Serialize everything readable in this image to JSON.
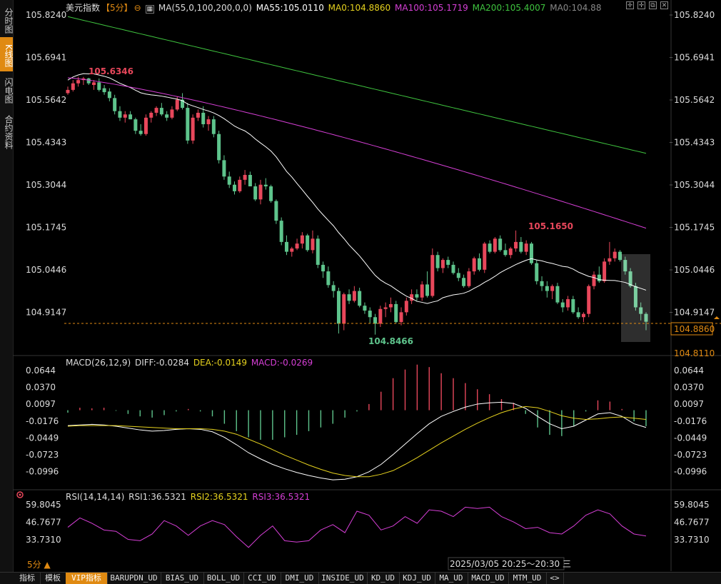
{
  "left_tabs": [
    {
      "label": "分时图",
      "active": false
    },
    {
      "label": "K线图",
      "active": true
    },
    {
      "label": "闪电图",
      "active": false
    },
    {
      "label": "合约资料",
      "active": false
    }
  ],
  "header": {
    "instrument": "美元指数",
    "period": "【5分】",
    "ma_params": "MA(55,0,100,200,0,0)",
    "ma55": "MA55:105.0110",
    "ma0a": "MA0:104.8860",
    "ma100": "MA100:105.1719",
    "ma200": "MA200:105.4007",
    "ma0b": "MA0:104.88"
  },
  "macd_header": {
    "params": "MACD(26,12,9)",
    "diff": "DIFF:-0.0284",
    "dea": "DEA:-0.0149",
    "macd": "MACD:-0.0269"
  },
  "rsi_header": {
    "params": "RSI(14,14,14)",
    "rsi1": "RSI1:36.5321",
    "rsi2": "RSI2:36.5321",
    "rsi3": "RSI3:36.5321"
  },
  "bottom": {
    "period_label": "5分 ▲",
    "datetime": "2025/03/05 20:25～20:30 三",
    "tabs": [
      "指标",
      "模板",
      "VIP指标",
      "BARUPDN_UD",
      "BIAS_UD",
      "BOLL_UD",
      "CCI_UD",
      "DMI_UD",
      "INSIDE_UD",
      "KD_UD",
      "KDJ_UD",
      "MA_UD",
      "MACD_UD",
      "MTM_UD",
      "<>"
    ]
  },
  "colors": {
    "up": "#e8475b",
    "down": "#5ec48c",
    "ma55": "#ffffff",
    "ma100": "#d63fd6",
    "ma200": "#3fc43f",
    "accent": "#e08a12",
    "dea": "#e6d21e"
  },
  "chart_data": [
    {
      "type": "candlestick",
      "title": "美元指数 【5分】",
      "y_ticks": [
        "105.8240",
        "105.6941",
        "105.5642",
        "105.4343",
        "105.3044",
        "105.1745",
        "105.0446",
        "104.9147"
      ],
      "ylim": [
        104.86,
        105.83
      ],
      "current_price": "104.8860",
      "lower_price_label": "104.8110",
      "annotations": {
        "high": "105.6346",
        "mid_high": "105.1650",
        "low": "104.8466"
      },
      "ohlc": [
        [
          105.585,
          105.605,
          105.58,
          105.595
        ],
        [
          105.595,
          105.625,
          105.59,
          105.615
        ],
        [
          105.615,
          105.635,
          105.605,
          105.625
        ],
        [
          105.625,
          105.6346,
          105.61,
          105.63
        ],
        [
          105.63,
          105.632,
          105.61,
          105.615
        ],
        [
          105.61,
          105.625,
          105.595,
          105.618
        ],
        [
          105.618,
          105.63,
          105.59,
          105.595
        ],
        [
          105.6,
          105.61,
          105.58,
          105.588
        ],
        [
          105.59,
          105.6,
          105.56,
          105.57
        ],
        [
          105.57,
          105.58,
          105.52,
          105.53
        ],
        [
          105.53,
          105.545,
          105.5,
          105.51
        ],
        [
          105.51,
          105.53,
          105.495,
          105.52
        ],
        [
          105.52,
          105.53,
          105.505,
          105.505
        ],
        [
          105.505,
          105.51,
          105.46,
          105.47
        ],
        [
          105.47,
          105.49,
          105.455,
          105.46
        ],
        [
          105.46,
          105.52,
          105.455,
          105.51
        ],
        [
          105.51,
          105.53,
          105.495,
          105.525
        ],
        [
          105.525,
          105.545,
          105.515,
          105.54
        ],
        [
          105.54,
          105.555,
          105.515,
          105.52
        ],
        [
          105.52,
          105.53,
          105.5,
          105.51
        ],
        [
          105.51,
          105.545,
          105.505,
          105.535
        ],
        [
          105.535,
          105.575,
          105.53,
          105.565
        ],
        [
          105.565,
          105.585,
          105.535,
          105.54
        ],
        [
          105.54,
          105.555,
          105.43,
          105.44
        ],
        [
          105.44,
          105.52,
          105.43,
          105.51
        ],
        [
          105.51,
          105.535,
          105.5,
          105.525
        ],
        [
          105.525,
          105.545,
          105.48,
          105.49
        ],
        [
          105.49,
          105.515,
          105.47,
          105.505
        ],
        [
          105.505,
          105.515,
          105.45,
          105.46
        ],
        [
          105.46,
          105.47,
          105.37,
          105.38
        ],
        [
          105.38,
          105.395,
          105.32,
          105.33
        ],
        [
          105.33,
          105.345,
          105.295,
          105.305
        ],
        [
          105.305,
          105.315,
          105.275,
          105.285
        ],
        [
          105.285,
          105.33,
          105.28,
          105.32
        ],
        [
          105.32,
          105.35,
          105.305,
          105.335
        ],
        [
          105.335,
          105.345,
          105.3,
          105.3
        ],
        [
          105.3,
          105.31,
          105.255,
          105.26
        ],
        [
          105.26,
          105.32,
          105.245,
          105.305
        ],
        [
          105.305,
          105.325,
          105.29,
          105.3
        ],
        [
          105.3,
          105.305,
          105.25,
          105.255
        ],
        [
          105.255,
          105.26,
          105.185,
          105.195
        ],
        [
          105.195,
          105.205,
          105.12,
          105.13
        ],
        [
          105.13,
          105.15,
          105.09,
          105.1
        ],
        [
          105.1,
          105.115,
          105.085,
          105.11
        ],
        [
          105.11,
          105.14,
          105.105,
          105.125
        ],
        [
          105.125,
          105.16,
          105.11,
          105.15
        ],
        [
          105.15,
          105.155,
          105.1,
          105.105
        ],
        [
          105.105,
          105.165,
          105.095,
          105.14
        ],
        [
          105.14,
          105.15,
          105.05,
          105.06
        ],
        [
          105.06,
          105.07,
          105.02,
          105.04
        ],
        [
          105.04,
          105.055,
          104.99,
          104.998
        ],
        [
          104.998,
          105.01,
          104.96,
          104.98
        ],
        [
          104.98,
          104.99,
          104.85,
          104.88
        ],
        [
          104.88,
          104.975,
          104.86,
          104.97
        ],
        [
          104.97,
          104.985,
          104.94,
          104.95
        ],
        [
          104.95,
          104.995,
          104.945,
          104.98
        ],
        [
          104.98,
          104.99,
          104.93,
          104.935
        ],
        [
          104.935,
          104.945,
          104.91,
          104.92
        ],
        [
          104.92,
          104.93,
          104.88,
          104.9
        ],
        [
          104.9,
          104.91,
          104.8466,
          104.88
        ],
        [
          104.88,
          104.935,
          104.87,
          104.925
        ],
        [
          104.925,
          104.945,
          104.9,
          104.93
        ],
        [
          104.93,
          104.96,
          104.915,
          104.94
        ],
        [
          104.94,
          104.95,
          104.88,
          104.885
        ],
        [
          104.885,
          104.93,
          104.875,
          104.915
        ],
        [
          104.915,
          104.96,
          104.905,
          104.95
        ],
        [
          104.95,
          104.985,
          104.94,
          104.97
        ],
        [
          104.97,
          104.985,
          104.95,
          104.96
        ],
        [
          104.96,
          105.01,
          104.95,
          105.0
        ],
        [
          105.0,
          105.04,
          104.96,
          104.965
        ],
        [
          104.965,
          105.11,
          104.96,
          105.09
        ],
        [
          105.09,
          105.1,
          105.04,
          105.05
        ],
        [
          105.05,
          105.08,
          105.035,
          105.075
        ],
        [
          105.075,
          105.085,
          105.05,
          105.06
        ],
        [
          105.06,
          105.07,
          105.03,
          105.035
        ],
        [
          105.035,
          105.05,
          105.01,
          105.02
        ],
        [
          105.02,
          105.03,
          104.99,
          104.995
        ],
        [
          104.995,
          105.05,
          104.99,
          105.04
        ],
        [
          105.04,
          105.085,
          105.03,
          105.08
        ],
        [
          105.08,
          105.095,
          105.04,
          105.045
        ],
        [
          105.045,
          105.13,
          105.035,
          105.125
        ],
        [
          105.125,
          105.135,
          105.095,
          105.1
        ],
        [
          105.1,
          105.145,
          105.095,
          105.14
        ],
        [
          105.14,
          105.15,
          105.1,
          105.105
        ],
        [
          105.105,
          105.125,
          105.085,
          105.09
        ],
        [
          105.09,
          105.115,
          105.08,
          105.11
        ],
        [
          105.11,
          105.165,
          105.1,
          105.13
        ],
        [
          105.13,
          105.145,
          105.095,
          105.1
        ],
        [
          105.1,
          105.135,
          105.09,
          105.125
        ],
        [
          105.125,
          105.13,
          105.06,
          105.065
        ],
        [
          105.065,
          105.075,
          105.0,
          105.01
        ],
        [
          105.01,
          105.025,
          104.98,
          104.995
        ],
        [
          104.995,
          105.01,
          104.96,
          104.98
        ],
        [
          104.98,
          105.0,
          104.955,
          104.995
        ],
        [
          104.995,
          105.005,
          104.94,
          104.945
        ],
        [
          104.945,
          104.955,
          104.915,
          104.93
        ],
        [
          104.93,
          104.965,
          104.92,
          104.955
        ],
        [
          104.955,
          104.965,
          104.91,
          104.915
        ],
        [
          104.915,
          104.93,
          104.895,
          104.9
        ],
        [
          104.9,
          104.915,
          104.885,
          104.91
        ],
        [
          104.91,
          105.0,
          104.9,
          104.995
        ],
        [
          104.995,
          105.04,
          104.985,
          105.03
        ],
        [
          105.03,
          105.055,
          105.005,
          105.01
        ],
        [
          105.01,
          105.08,
          105.005,
          105.07
        ],
        [
          105.07,
          105.13,
          105.06,
          105.08
        ],
        [
          105.08,
          105.11,
          105.07,
          105.1
        ],
        [
          105.1,
          105.105,
          105.07,
          105.075
        ],
        [
          105.075,
          105.085,
          105.03,
          105.04
        ],
        [
          105.04,
          105.05,
          104.99,
          104.995
        ],
        [
          104.995,
          105.005,
          104.92,
          104.93
        ],
        [
          104.93,
          104.945,
          104.89,
          104.91
        ],
        [
          104.91,
          104.915,
          104.86,
          104.886
        ]
      ]
    },
    {
      "type": "bar+line",
      "title": "MACD(26,12,9)",
      "y_ticks": [
        "0.0644",
        "0.0370",
        "0.0097",
        "-0.0176",
        "-0.0449",
        "-0.0723",
        "-0.0996"
      ],
      "ylim": [
        -0.125,
        0.07
      ],
      "series": [
        {
          "name": "DIFF",
          "values": [
            -0.025,
            -0.024,
            -0.023,
            -0.024,
            -0.026,
            -0.029,
            -0.032,
            -0.034,
            -0.033,
            -0.031,
            -0.03,
            -0.031,
            -0.035,
            -0.044,
            -0.056,
            -0.069,
            -0.079,
            -0.088,
            -0.095,
            -0.101,
            -0.106,
            -0.11,
            -0.113,
            -0.112,
            -0.108,
            -0.1,
            -0.088,
            -0.072,
            -0.055,
            -0.038,
            -0.022,
            -0.01,
            -0.002,
            0.005,
            0.01,
            0.012,
            0.013,
            0.011,
            0.003,
            -0.01,
            -0.022,
            -0.03,
            -0.026,
            -0.016,
            -0.006,
            -0.004,
            -0.01,
            -0.022,
            -0.028
          ]
        },
        {
          "name": "DEA",
          "values": [
            -0.026,
            -0.025,
            -0.025,
            -0.025,
            -0.025,
            -0.026,
            -0.027,
            -0.028,
            -0.029,
            -0.03,
            -0.03,
            -0.03,
            -0.031,
            -0.034,
            -0.039,
            -0.047,
            -0.055,
            -0.064,
            -0.073,
            -0.081,
            -0.089,
            -0.096,
            -0.102,
            -0.106,
            -0.108,
            -0.108,
            -0.104,
            -0.098,
            -0.088,
            -0.077,
            -0.065,
            -0.053,
            -0.042,
            -0.031,
            -0.021,
            -0.012,
            -0.004,
            0.002,
            0.006,
            0.004,
            -0.002,
            -0.009,
            -0.013,
            -0.015,
            -0.014,
            -0.012,
            -0.011,
            -0.013,
            -0.015
          ]
        },
        {
          "name": "MACD",
          "values": [
            -0.004,
            0.004,
            0.003,
            0.004,
            -0.001,
            -0.006,
            -0.01,
            -0.012,
            -0.008,
            -0.002,
            0.002,
            -0.002,
            -0.01,
            -0.022,
            -0.034,
            -0.044,
            -0.048,
            -0.048,
            -0.044,
            -0.04,
            -0.034,
            -0.028,
            -0.022,
            -0.012,
            -0.002,
            0.01,
            0.03,
            0.052,
            0.066,
            0.074,
            0.07,
            0.06,
            0.052,
            0.044,
            0.034,
            0.026,
            0.018,
            0.012,
            -0.006,
            -0.028,
            -0.04,
            -0.042,
            -0.026,
            -0.002,
            0.016,
            0.014,
            0.002,
            -0.018,
            -0.026
          ]
        }
      ]
    },
    {
      "type": "line",
      "title": "RSI(14,14,14)",
      "y_ticks": [
        "59.8045",
        "46.7677",
        "33.7310"
      ],
      "ylim": [
        26,
        62
      ],
      "series": [
        {
          "name": "RSI1",
          "values": [
            43,
            50,
            46,
            41,
            40,
            34,
            33,
            38,
            48,
            44,
            37,
            44,
            48,
            45,
            36,
            28,
            37,
            44,
            33,
            32,
            33,
            41,
            45,
            39,
            55,
            52,
            41,
            44,
            51,
            46,
            56,
            55,
            51,
            58,
            57,
            58,
            51,
            47,
            42,
            43,
            39,
            38,
            44,
            52,
            56,
            53,
            44,
            38,
            36.5
          ]
        }
      ]
    }
  ]
}
